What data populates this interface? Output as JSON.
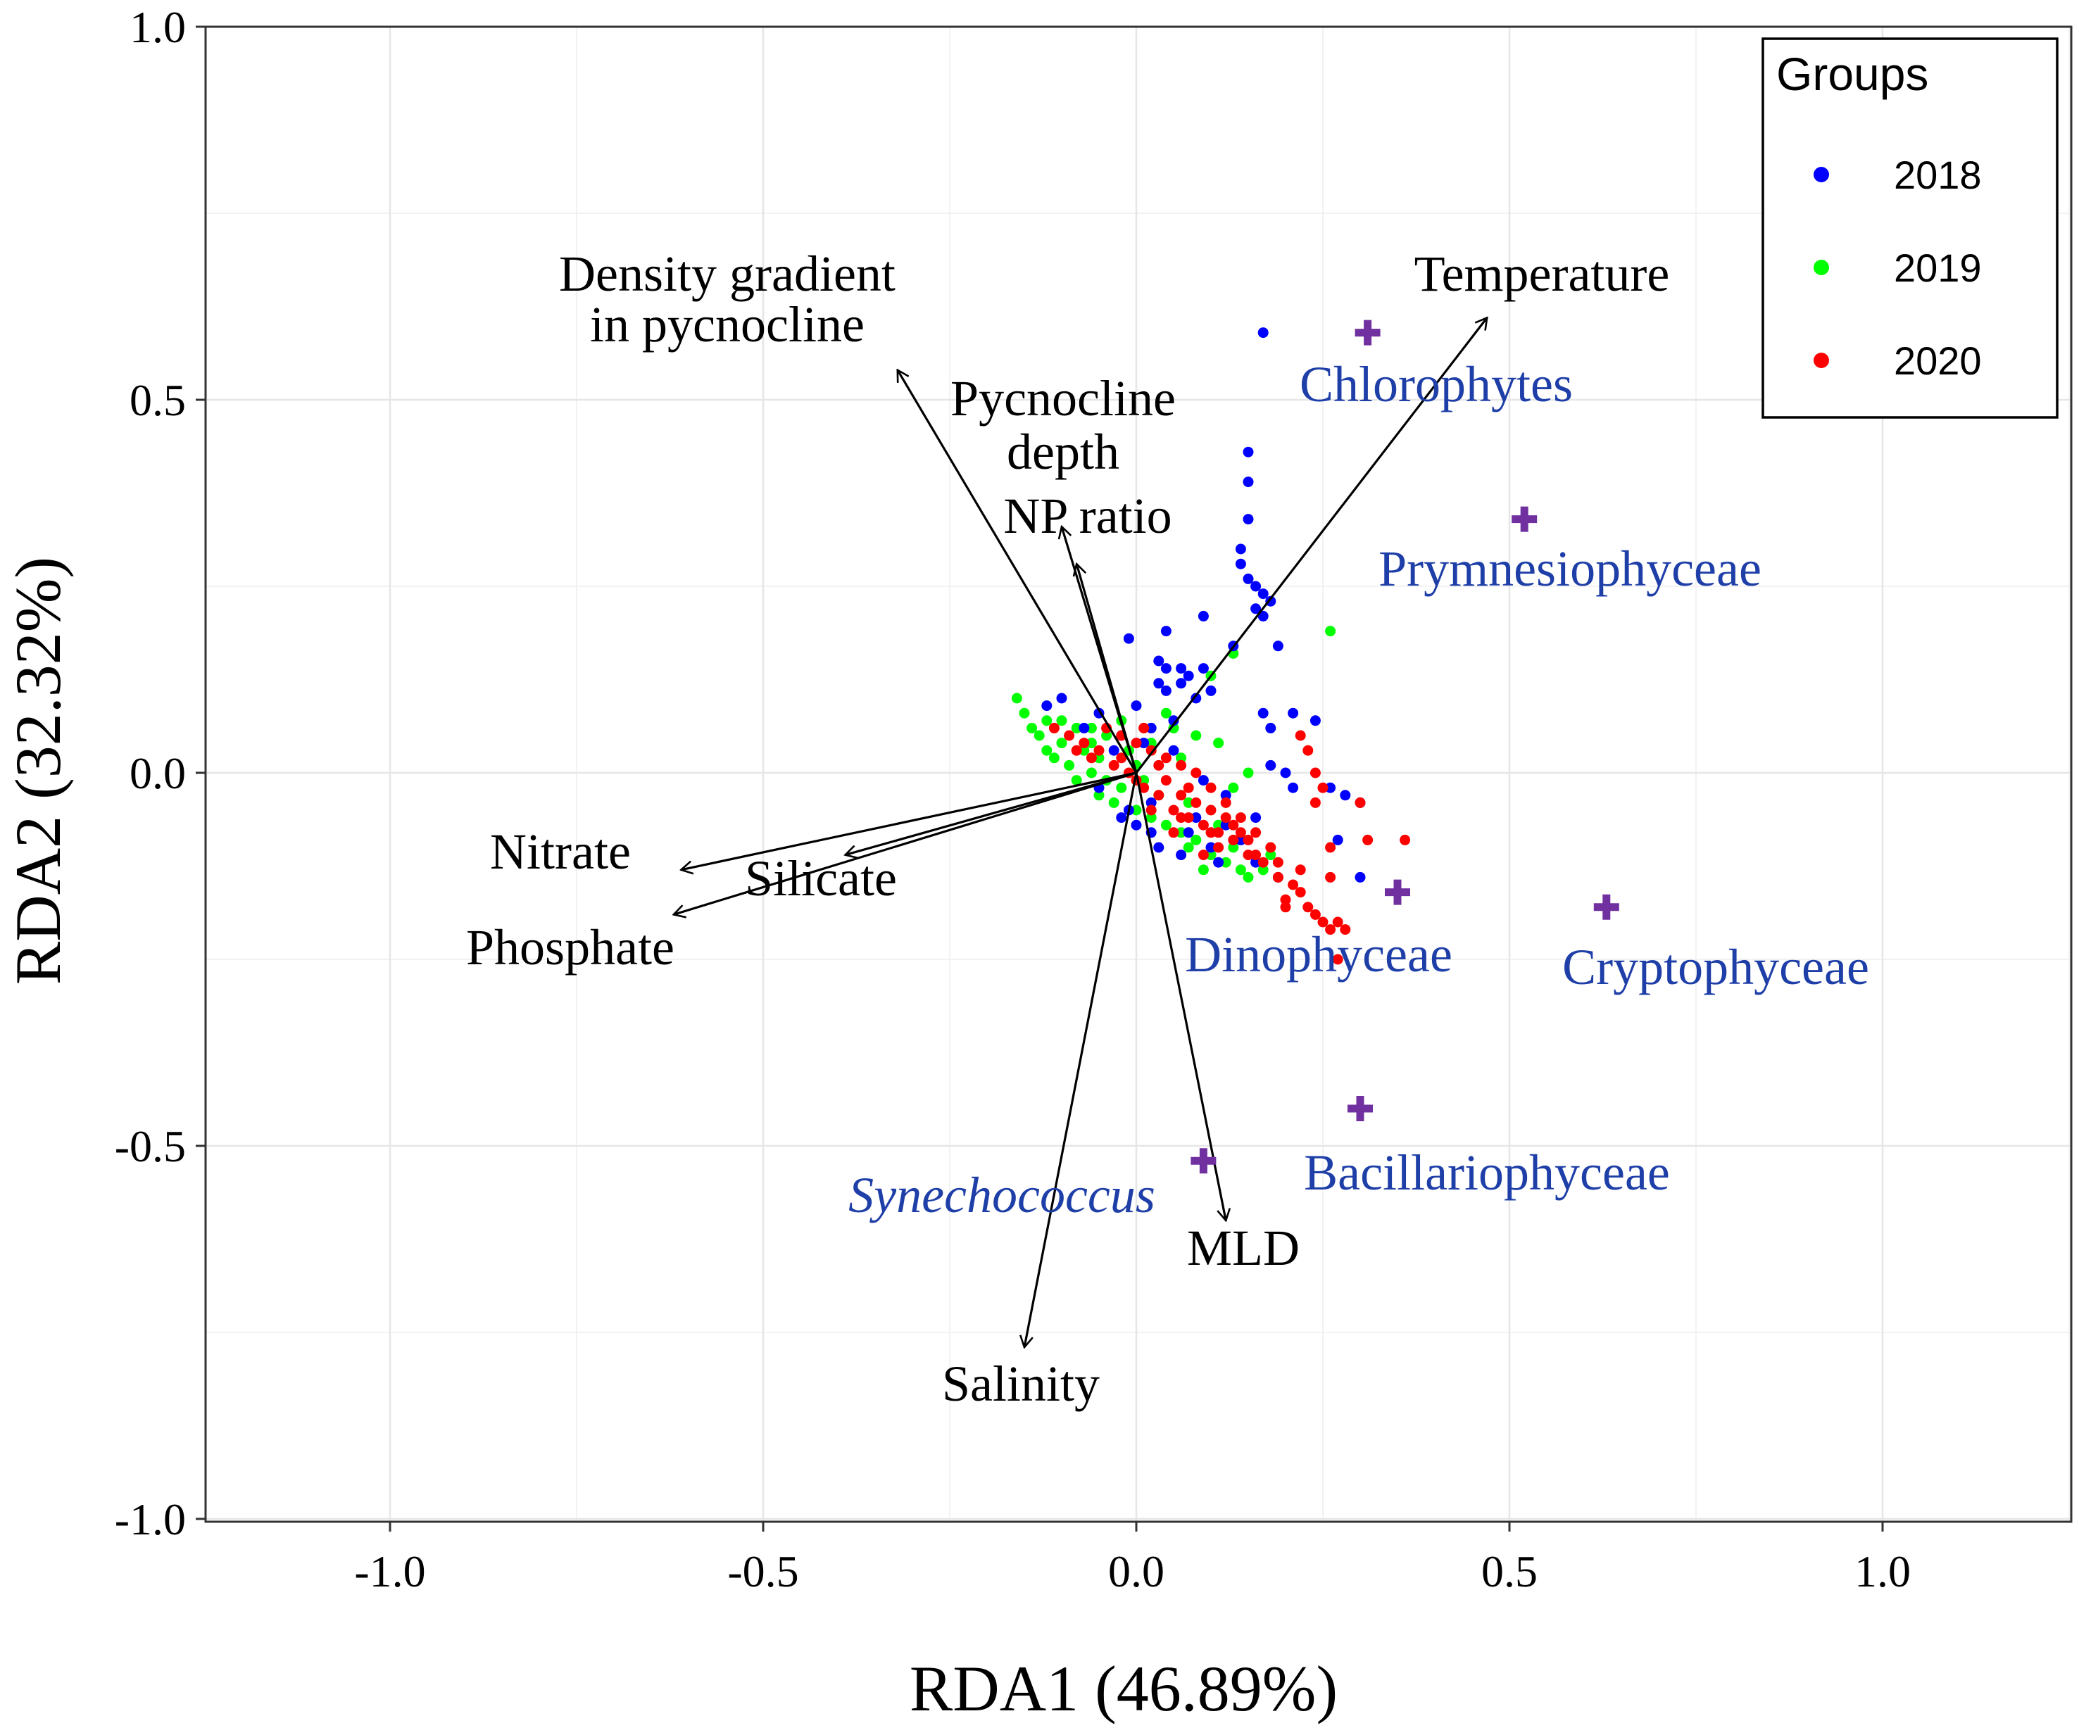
{
  "chart_data": {
    "type": "scatter",
    "subtype": "RDA biplot",
    "xlabel": "RDA1 (46.89%)",
    "ylabel": "RDA2 (32.32%)",
    "xlim": [
      -1.25,
      1.25
    ],
    "ylim": [
      -1.0,
      1.0
    ],
    "x_ticks": [
      -1.0,
      -0.5,
      0.0,
      0.5,
      1.0
    ],
    "y_ticks": [
      -1.0,
      -0.5,
      0.0,
      0.5,
      1.0
    ],
    "x_tick_labels": [
      "-1.0",
      "-0.5",
      "0.0",
      "0.5",
      "1.0"
    ],
    "y_tick_labels": [
      "-1.0",
      "-0.5",
      "0.0",
      "0.5",
      "1.0"
    ],
    "grid": true,
    "legend": {
      "title": "Groups",
      "position": "top-right",
      "entries": [
        {
          "label": "2018",
          "color": "#0000ff"
        },
        {
          "label": "2019",
          "color": "#00ff00"
        },
        {
          "label": "2020",
          "color": "#ff0000"
        }
      ]
    },
    "env_vectors": [
      {
        "name": "Temperature",
        "x": 0.47,
        "y": 0.61,
        "label_lines": [
          "Temperature"
        ]
      },
      {
        "name": "Density gradient in pycnocline",
        "x": -0.32,
        "y": 0.54,
        "label_lines": [
          "Density gradient",
          "in pycnocline"
        ]
      },
      {
        "name": "Pycnocline depth",
        "x": -0.1,
        "y": 0.33,
        "label_lines": [
          "Pycnocline",
          "depth"
        ]
      },
      {
        "name": "NP ratio",
        "x": -0.08,
        "y": 0.28,
        "label_lines": [
          "NP ratio"
        ]
      },
      {
        "name": "Nitrate",
        "x": -0.61,
        "y": -0.13,
        "label_lines": [
          "Nitrate"
        ]
      },
      {
        "name": "Silicate",
        "x": -0.39,
        "y": -0.11,
        "label_lines": [
          "Silicate"
        ]
      },
      {
        "name": "Phosphate",
        "x": -0.62,
        "y": -0.19,
        "label_lines": [
          "Phosphate"
        ]
      },
      {
        "name": "MLD",
        "x": 0.12,
        "y": -0.6,
        "label_lines": [
          "MLD"
        ]
      },
      {
        "name": "Salinity",
        "x": -0.15,
        "y": -0.77,
        "label_lines": [
          "Salinity"
        ]
      }
    ],
    "taxa": [
      {
        "name": "Chlorophytes",
        "x": 0.31,
        "y": 0.59,
        "italic": false
      },
      {
        "name": "Prymnesiophyceae",
        "x": 0.52,
        "y": 0.34,
        "italic": false
      },
      {
        "name": "Dinophyceae",
        "x": 0.35,
        "y": -0.16,
        "italic": false
      },
      {
        "name": "Cryptophyceae",
        "x": 0.63,
        "y": -0.18,
        "italic": false
      },
      {
        "name": "Bacillariophyceae",
        "x": 0.3,
        "y": -0.45,
        "italic": false
      },
      {
        "name": "Synechococcus",
        "x": 0.09,
        "y": -0.52,
        "italic": true
      }
    ],
    "series": [
      {
        "name": "2018",
        "color": "#0000ff",
        "points": [
          [
            0.17,
            0.59
          ],
          [
            0.15,
            0.43
          ],
          [
            0.15,
            0.39
          ],
          [
            0.15,
            0.34
          ],
          [
            0.14,
            0.3
          ],
          [
            0.14,
            0.28
          ],
          [
            0.15,
            0.26
          ],
          [
            0.16,
            0.25
          ],
          [
            0.17,
            0.24
          ],
          [
            0.18,
            0.23
          ],
          [
            0.16,
            0.22
          ],
          [
            0.17,
            0.21
          ],
          [
            0.09,
            0.21
          ],
          [
            0.04,
            0.19
          ],
          [
            0.19,
            0.17
          ],
          [
            0.13,
            0.17
          ],
          [
            -0.01,
            0.18
          ],
          [
            0.03,
            0.15
          ],
          [
            0.04,
            0.14
          ],
          [
            0.06,
            0.14
          ],
          [
            0.07,
            0.13
          ],
          [
            0.09,
            0.14
          ],
          [
            0.06,
            0.12
          ],
          [
            0.03,
            0.12
          ],
          [
            0.1,
            0.11
          ],
          [
            0.08,
            0.1
          ],
          [
            0.04,
            0.11
          ],
          [
            0.17,
            0.08
          ],
          [
            0.21,
            0.08
          ],
          [
            0.24,
            0.07
          ],
          [
            0.18,
            0.06
          ],
          [
            0.05,
            0.07
          ],
          [
            -0.1,
            0.1
          ],
          [
            -0.12,
            0.09
          ],
          [
            -0.05,
            0.08
          ],
          [
            -0.02,
            0.05
          ],
          [
            0.02,
            0.06
          ],
          [
            0.01,
            0.04
          ],
          [
            0.18,
            0.01
          ],
          [
            0.2,
            0.0
          ],
          [
            0.21,
            -0.02
          ],
          [
            0.26,
            -0.02
          ],
          [
            0.28,
            -0.03
          ],
          [
            0.3,
            -0.04
          ],
          [
            0.27,
            -0.09
          ],
          [
            0.3,
            -0.14
          ],
          [
            0.19,
            -0.14
          ],
          [
            0.16,
            -0.12
          ],
          [
            0.14,
            -0.09
          ],
          [
            0.1,
            -0.1
          ],
          [
            0.06,
            -0.11
          ],
          [
            0.03,
            -0.1
          ],
          [
            0.0,
            -0.07
          ],
          [
            -0.01,
            -0.05
          ],
          [
            -0.05,
            -0.02
          ],
          [
            0.02,
            -0.04
          ],
          [
            0.08,
            -0.06
          ],
          [
            0.12,
            -0.07
          ],
          [
            0.16,
            -0.06
          ],
          [
            -0.03,
            0.03
          ],
          [
            -0.07,
            0.06
          ],
          [
            0.0,
            0.09
          ],
          [
            0.05,
            0.03
          ],
          [
            0.02,
            -0.08
          ],
          [
            -0.02,
            -0.06
          ],
          [
            0.11,
            -0.12
          ],
          [
            0.07,
            -0.08
          ],
          [
            0.12,
            -0.03
          ],
          [
            0.09,
            -0.01
          ]
        ]
      },
      {
        "name": "2019",
        "color": "#00ff00",
        "points": [
          [
            0.26,
            0.19
          ],
          [
            0.13,
            0.16
          ],
          [
            0.1,
            0.13
          ],
          [
            -0.16,
            0.1
          ],
          [
            -0.15,
            0.08
          ],
          [
            -0.12,
            0.07
          ],
          [
            -0.1,
            0.07
          ],
          [
            -0.08,
            0.06
          ],
          [
            -0.06,
            0.06
          ],
          [
            -0.04,
            0.05
          ],
          [
            -0.13,
            0.05
          ],
          [
            -0.1,
            0.04
          ],
          [
            -0.07,
            0.03
          ],
          [
            -0.05,
            0.02
          ],
          [
            -0.09,
            0.01
          ],
          [
            -0.06,
            0.0
          ],
          [
            -0.04,
            -0.01
          ],
          [
            -0.02,
            -0.02
          ],
          [
            -0.03,
            -0.04
          ],
          [
            0.0,
            -0.05
          ],
          [
            0.02,
            -0.06
          ],
          [
            0.04,
            -0.07
          ],
          [
            0.06,
            -0.08
          ],
          [
            0.08,
            -0.09
          ],
          [
            0.1,
            -0.11
          ],
          [
            0.12,
            -0.12
          ],
          [
            0.14,
            -0.13
          ],
          [
            0.15,
            -0.14
          ],
          [
            0.09,
            -0.13
          ],
          [
            0.07,
            -0.1
          ],
          [
            0.05,
            0.06
          ],
          [
            0.08,
            0.05
          ],
          [
            0.11,
            0.04
          ],
          [
            0.15,
            0.0
          ],
          [
            0.13,
            -0.02
          ],
          [
            0.06,
            0.02
          ],
          [
            0.02,
            0.04
          ],
          [
            -0.01,
            0.03
          ],
          [
            -0.11,
            0.02
          ],
          [
            -0.08,
            -0.01
          ],
          [
            -0.05,
            -0.03
          ],
          [
            0.03,
            -0.03
          ],
          [
            0.11,
            -0.07
          ],
          [
            0.13,
            -0.1
          ],
          [
            0.17,
            -0.13
          ],
          [
            0.04,
            0.08
          ],
          [
            -0.02,
            0.07
          ],
          [
            0.0,
            0.01
          ],
          [
            -0.06,
            0.04
          ],
          [
            0.07,
            -0.04
          ],
          [
            0.18,
            -0.11
          ],
          [
            -0.14,
            0.06
          ],
          [
            -0.12,
            0.03
          ],
          [
            0.01,
            -0.01
          ]
        ]
      },
      {
        "name": "2020",
        "color": "#ff0000",
        "points": [
          [
            0.22,
            0.05
          ],
          [
            0.23,
            0.03
          ],
          [
            0.24,
            0.0
          ],
          [
            0.25,
            -0.02
          ],
          [
            0.24,
            -0.04
          ],
          [
            0.3,
            -0.04
          ],
          [
            0.36,
            -0.09
          ],
          [
            0.31,
            -0.09
          ],
          [
            0.26,
            -0.1
          ],
          [
            0.22,
            -0.13
          ],
          [
            0.26,
            -0.14
          ],
          [
            0.21,
            -0.15
          ],
          [
            0.22,
            -0.16
          ],
          [
            0.24,
            -0.19
          ],
          [
            0.25,
            -0.2
          ],
          [
            0.27,
            -0.2
          ],
          [
            0.26,
            -0.21
          ],
          [
            0.28,
            -0.21
          ],
          [
            0.27,
            -0.25
          ],
          [
            0.2,
            -0.17
          ],
          [
            0.19,
            -0.14
          ],
          [
            0.17,
            -0.12
          ],
          [
            0.15,
            -0.11
          ],
          [
            0.13,
            -0.09
          ],
          [
            0.11,
            -0.08
          ],
          [
            0.09,
            -0.07
          ],
          [
            0.07,
            -0.06
          ],
          [
            0.05,
            -0.05
          ],
          [
            0.03,
            -0.03
          ],
          [
            0.01,
            -0.02
          ],
          [
            -0.01,
            0.0
          ],
          [
            -0.03,
            0.01
          ],
          [
            -0.05,
            0.03
          ],
          [
            -0.07,
            0.04
          ],
          [
            -0.09,
            0.05
          ],
          [
            -0.11,
            0.06
          ],
          [
            0.02,
            0.03
          ],
          [
            0.04,
            0.02
          ],
          [
            0.06,
            0.01
          ],
          [
            0.08,
            0.0
          ],
          [
            0.1,
            -0.02
          ],
          [
            0.12,
            -0.04
          ],
          [
            0.14,
            -0.06
          ],
          [
            0.16,
            -0.08
          ],
          [
            0.18,
            -0.1
          ],
          [
            0.04,
            -0.01
          ],
          [
            0.06,
            -0.03
          ],
          [
            0.08,
            -0.04
          ],
          [
            0.1,
            -0.05
          ],
          [
            0.12,
            -0.06
          ],
          [
            0.14,
            -0.08
          ],
          [
            0.0,
            0.04
          ],
          [
            -0.02,
            0.05
          ],
          [
            -0.04,
            0.06
          ],
          [
            0.02,
            -0.05
          ],
          [
            0.05,
            -0.08
          ],
          [
            0.09,
            -0.11
          ],
          [
            0.13,
            -0.07
          ],
          [
            0.11,
            -0.1
          ],
          [
            0.07,
            -0.02
          ],
          [
            0.03,
            0.01
          ],
          [
            -0.06,
            0.02
          ],
          [
            -0.08,
            0.03
          ],
          [
            0.01,
            0.06
          ],
          [
            0.15,
            -0.09
          ],
          [
            0.19,
            -0.12
          ],
          [
            0.2,
            -0.18
          ],
          [
            0.23,
            -0.18
          ],
          [
            0.06,
            -0.06
          ],
          [
            0.0,
            -0.01
          ],
          [
            -0.02,
            0.02
          ],
          [
            0.1,
            -0.08
          ],
          [
            0.16,
            -0.11
          ]
        ]
      }
    ]
  }
}
